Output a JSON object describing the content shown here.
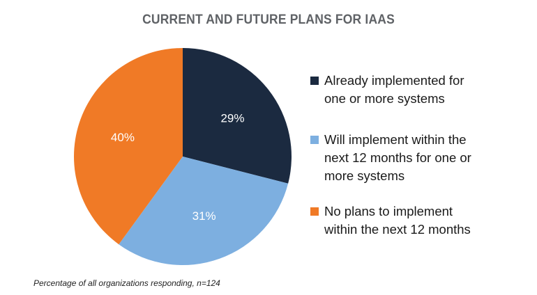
{
  "chart_data": {
    "type": "pie",
    "title": "CURRENT AND FUTURE PLANS FOR IAAS",
    "slices": [
      {
        "label_lines": [
          "Already implemented for",
          "one or more systems"
        ],
        "value": 29,
        "value_label": "29%",
        "color": "#1b2a40"
      },
      {
        "label_lines": [
          "Will implement within the",
          "next 12 months for one or",
          "more systems"
        ],
        "value": 31,
        "value_label": "31%",
        "color": "#7dafe0"
      },
      {
        "label_lines": [
          "No plans to implement",
          "within the next 12 months"
        ],
        "value": 40,
        "value_label": "40%",
        "color": "#f07a26"
      }
    ],
    "legend_position": "right",
    "footnote": "Percentage of all organizations responding, n=124"
  }
}
